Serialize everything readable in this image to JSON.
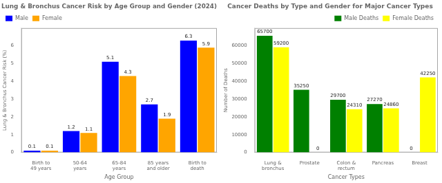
{
  "chart_data": [
    {
      "type": "bar",
      "title": "Lung & Bronchus Cancer Risk by Age Group and Gender (2024)",
      "categories": [
        "Birth to\n49 years",
        "50-64\nyears",
        "65-84\nyears",
        "85 years\nand older",
        "Birth to\ndeath"
      ],
      "series": [
        {
          "name": "Male",
          "color": "#0000ff",
          "values": [
            0.1,
            1.2,
            5.1,
            2.7,
            6.3
          ]
        },
        {
          "name": "Female",
          "color": "#ffa500",
          "values": [
            0.1,
            1.1,
            4.3,
            1.9,
            5.9
          ]
        }
      ],
      "xlabel": "Age Group",
      "ylabel": "Lung & Bronchus Cancer Risk (%)",
      "ylim": [
        0,
        7
      ],
      "yticks": [
        0,
        1,
        2,
        3,
        4,
        5,
        6
      ],
      "grid": false,
      "legend": "upper left",
      "data_labels": true
    },
    {
      "type": "bar",
      "title": "Cancer Deaths by Type and Gender for Major Cancer Types",
      "categories": [
        "Lung &\nbronchus",
        "Prostate",
        "Colon &\nrectum",
        "Pancreas",
        "Breast"
      ],
      "series": [
        {
          "name": "Male Deaths",
          "color": "#008000",
          "values": [
            65700,
            35250,
            29700,
            27270,
            0
          ]
        },
        {
          "name": "Female Deaths",
          "color": "#ffff00",
          "values": [
            59200,
            0,
            24310,
            24860,
            42250
          ]
        }
      ],
      "xlabel": "Cancer Types",
      "ylabel": "Number of Deaths",
      "ylim": [
        0,
        70000
      ],
      "yticks": [
        0,
        10000,
        20000,
        30000,
        40000,
        50000,
        60000
      ],
      "grid": false,
      "legend": "upper right",
      "data_labels": true
    }
  ]
}
